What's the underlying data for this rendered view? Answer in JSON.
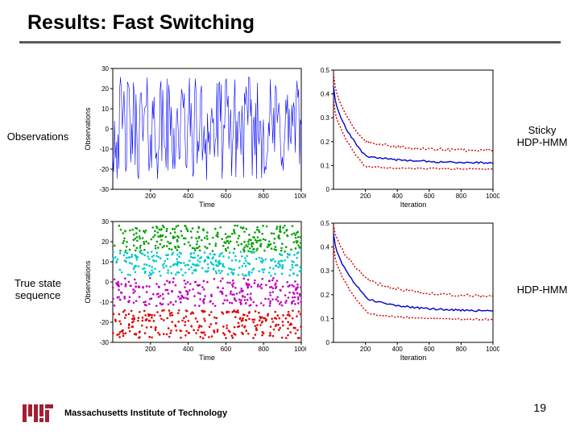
{
  "title": "Results: Fast Switching",
  "labels": {
    "top_left": "Observations",
    "bottom_left": "True state\nsequence",
    "top_right": "Sticky\nHDP-HMM",
    "bottom_right": "HDP-HMM"
  },
  "footer": {
    "institution": "Massachusetts Institute of Technology",
    "logo_color": "#a31f34"
  },
  "page_number": "19",
  "chart_obs": {
    "type": "line",
    "xlim": [
      0,
      1000
    ],
    "ylim": [
      -30,
      30
    ],
    "xticks": [
      200,
      400,
      600,
      800,
      1000
    ],
    "yticks": [
      -30,
      -20,
      -10,
      0,
      10,
      20,
      30
    ],
    "ylabel": "Observations",
    "xlabel": "Time",
    "line_color": "#0000ff",
    "background_color": "#ffffff",
    "axis_color": "#000000",
    "line_width": 0.6,
    "n_points": 220,
    "amplitude": 26
  },
  "chart_state": {
    "type": "scatter",
    "xlim": [
      0,
      1000
    ],
    "ylim": [
      -30,
      30
    ],
    "xticks": [
      200,
      400,
      600,
      800,
      1000
    ],
    "yticks": [
      -30,
      -20,
      -10,
      0,
      10,
      20,
      30
    ],
    "ylabel": "Observations",
    "xlabel": "Time",
    "background_color": "#ffffff",
    "axis_color": "#000000",
    "marker_size": 1.3,
    "segments": [
      {
        "color": "#00a000",
        "band": [
          15,
          28
        ]
      },
      {
        "color": "#00c8c8",
        "band": [
          3,
          15
        ]
      },
      {
        "color": "#c000c0",
        "band": [
          -12,
          2
        ]
      },
      {
        "color": "#e00000",
        "band": [
          -28,
          -14
        ]
      }
    ],
    "n_points_per_color": 280
  },
  "chart_sticky": {
    "type": "line",
    "xlim": [
      0,
      1000
    ],
    "ylim": [
      0,
      0.5
    ],
    "xticks": [
      200,
      400,
      600,
      800,
      1000
    ],
    "yticks": [
      0,
      0.1,
      0.2,
      0.3,
      0.4,
      0.5
    ],
    "xlabel": "Iteration",
    "background_color": "#ffffff",
    "axis_color": "#000000",
    "mid_color": "#0000cc",
    "band_color": "#d00000",
    "line_width": 1.4,
    "band_dash": "2,2",
    "curves": {
      "upper": {
        "start": 0.48,
        "knee_x": 200,
        "knee_y": 0.2,
        "end": 0.16
      },
      "mid": {
        "start": 0.43,
        "knee_x": 200,
        "knee_y": 0.14,
        "end": 0.11
      },
      "lower": {
        "start": 0.38,
        "knee_x": 200,
        "knee_y": 0.095,
        "end": 0.085
      }
    }
  },
  "chart_hdp": {
    "type": "line",
    "xlim": [
      0,
      1000
    ],
    "ylim": [
      0,
      0.5
    ],
    "xticks": [
      200,
      400,
      600,
      800,
      1000
    ],
    "yticks": [
      0,
      0.1,
      0.2,
      0.3,
      0.4,
      0.5
    ],
    "xlabel": "Iteration",
    "background_color": "#ffffff",
    "axis_color": "#000000",
    "mid_color": "#0000cc",
    "band_color": "#d00000",
    "line_width": 1.4,
    "band_dash": "2,2",
    "curves": {
      "upper": {
        "start": 0.5,
        "knee_x": 220,
        "knee_y": 0.26,
        "end": 0.19
      },
      "mid": {
        "start": 0.46,
        "knee_x": 220,
        "knee_y": 0.18,
        "end": 0.13
      },
      "lower": {
        "start": 0.41,
        "knee_x": 220,
        "knee_y": 0.12,
        "end": 0.095
      }
    }
  }
}
